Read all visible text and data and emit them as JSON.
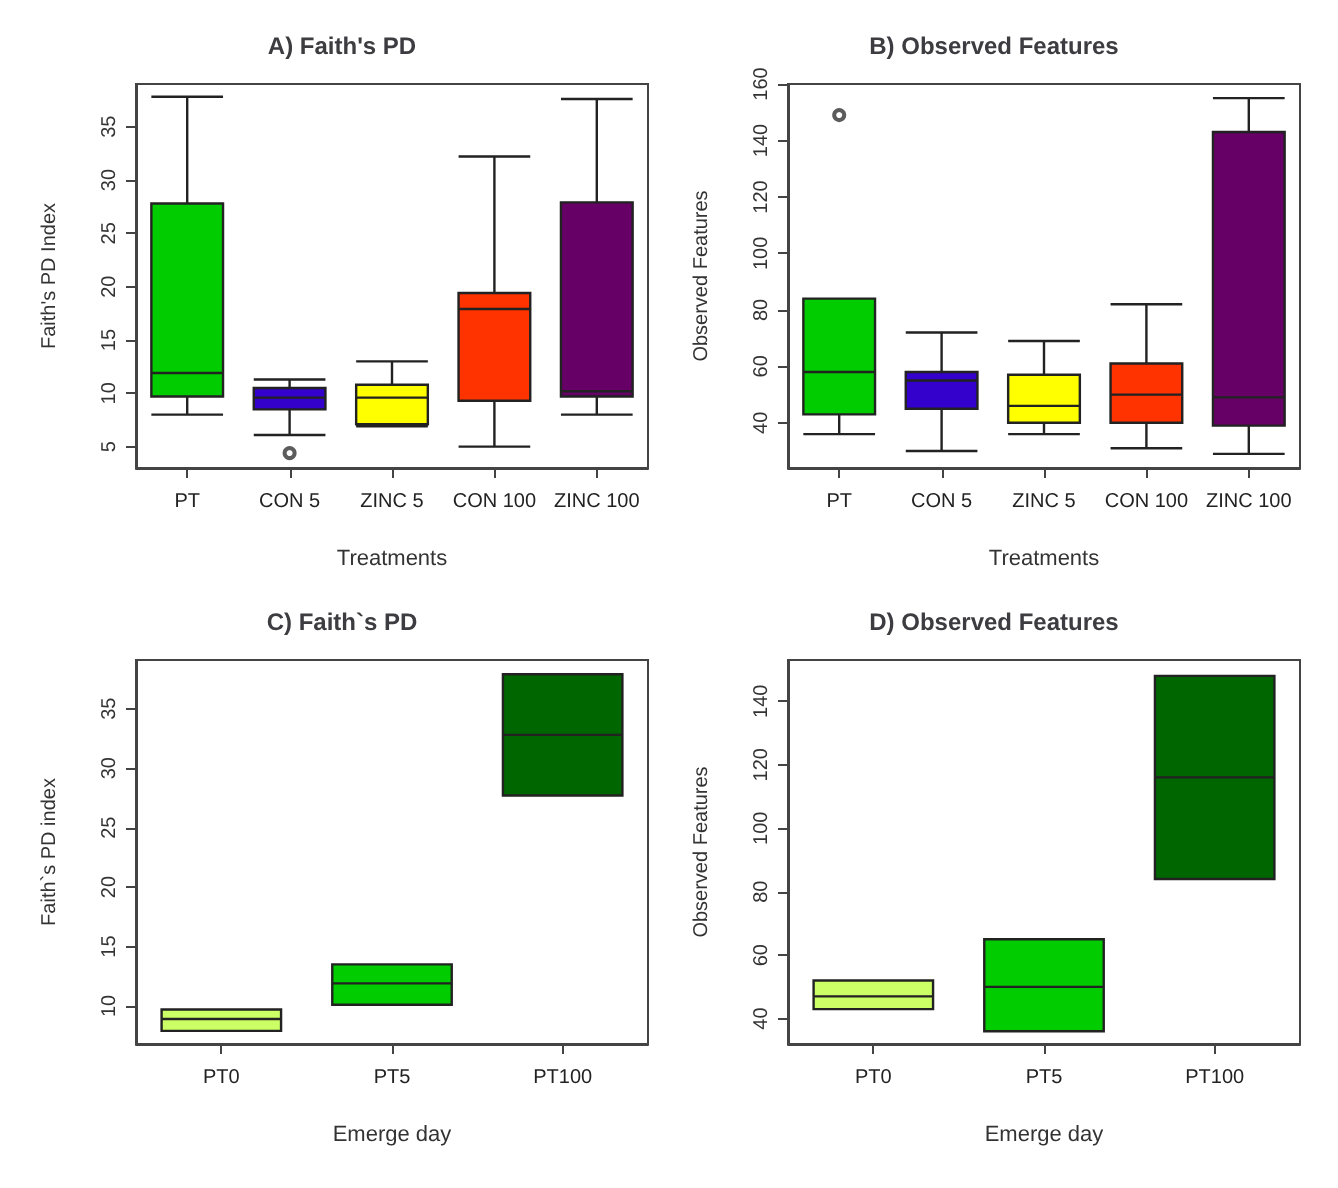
{
  "chart_data": [
    {
      "type": "box",
      "title": "A) Faith's PD",
      "xlabel": "Treatments",
      "ylabel": "Faith's PD Index",
      "categories": [
        "PT",
        "CON 5",
        "ZINC 5",
        "CON 100",
        "ZINC 100"
      ],
      "colors": [
        "#00cc00",
        "#3300cc",
        "#ffff00",
        "#ff3300",
        "#660066"
      ],
      "ylim": [
        3,
        39
      ],
      "yticks": [
        5,
        10,
        15,
        20,
        25,
        30,
        35
      ],
      "boxes": [
        {
          "low": 8.0,
          "q1": 9.7,
          "median": 11.9,
          "q3": 27.8,
          "high": 37.8
        },
        {
          "low": 6.1,
          "q1": 8.5,
          "median": 9.6,
          "q3": 10.5,
          "high": 11.3,
          "outliers": [
            4.4
          ]
        },
        {
          "low": 6.9,
          "q1": 7.1,
          "median": 9.6,
          "q3": 10.8,
          "high": 13.0
        },
        {
          "low": 5.0,
          "q1": 9.3,
          "median": 17.9,
          "q3": 19.4,
          "high": 32.2
        },
        {
          "low": 8.0,
          "q1": 9.7,
          "median": 10.2,
          "q3": 27.9,
          "high": 37.6
        }
      ]
    },
    {
      "type": "box",
      "title": "B) Observed Features",
      "xlabel": "Treatments",
      "ylabel": "Observed Features",
      "categories": [
        "PT",
        "CON 5",
        "ZINC 5",
        "CON 100",
        "ZINC 100"
      ],
      "colors": [
        "#00cc00",
        "#3300cc",
        "#ffff00",
        "#ff3300",
        "#660066"
      ],
      "ylim": [
        24,
        160
      ],
      "yticks": [
        40,
        60,
        80,
        100,
        120,
        140,
        160
      ],
      "boxes": [
        {
          "low": 36,
          "q1": 43,
          "median": 58,
          "q3": 84,
          "high": 84,
          "outliers": [
            149
          ]
        },
        {
          "low": 30,
          "q1": 45,
          "median": 55,
          "q3": 58,
          "high": 72
        },
        {
          "low": 36,
          "q1": 40,
          "median": 46,
          "q3": 57,
          "high": 69
        },
        {
          "low": 31,
          "q1": 40,
          "median": 50,
          "q3": 61,
          "high": 82
        },
        {
          "low": 29,
          "q1": 39,
          "median": 49,
          "q3": 143,
          "high": 155
        }
      ]
    },
    {
      "type": "box",
      "title": "C) Faith`s PD",
      "xlabel": "Emerge day",
      "ylabel": "Faith`s PD index",
      "categories": [
        "PT0",
        "PT5",
        "PT100"
      ],
      "colors": [
        "#ccff66",
        "#00cc00",
        "#006600"
      ],
      "ylim": [
        6.8,
        39.1
      ],
      "yticks": [
        10,
        15,
        20,
        25,
        30,
        35
      ],
      "boxes": [
        {
          "low": 7.9,
          "q1": 7.9,
          "median": 8.9,
          "q3": 9.7,
          "high": 9.7
        },
        {
          "low": 10.1,
          "q1": 10.1,
          "median": 11.9,
          "q3": 13.5,
          "high": 13.5
        },
        {
          "low": 27.7,
          "q1": 27.7,
          "median": 32.8,
          "q3": 37.9,
          "high": 37.9
        }
      ]
    },
    {
      "type": "box",
      "title": "D) Observed Features",
      "xlabel": "Emerge day",
      "ylabel": "Observed Features",
      "categories": [
        "PT0",
        "PT5",
        "PT100"
      ],
      "colors": [
        "#ccff66",
        "#00cc00",
        "#006600"
      ],
      "ylim": [
        32,
        153
      ],
      "yticks": [
        40,
        60,
        80,
        100,
        120,
        140
      ],
      "boxes": [
        {
          "low": 43,
          "q1": 43,
          "median": 47,
          "q3": 52,
          "high": 52
        },
        {
          "low": 36,
          "q1": 36,
          "median": 50,
          "q3": 65,
          "high": 65
        },
        {
          "low": 84,
          "q1": 84,
          "median": 116,
          "q3": 148,
          "high": 148
        }
      ]
    }
  ]
}
